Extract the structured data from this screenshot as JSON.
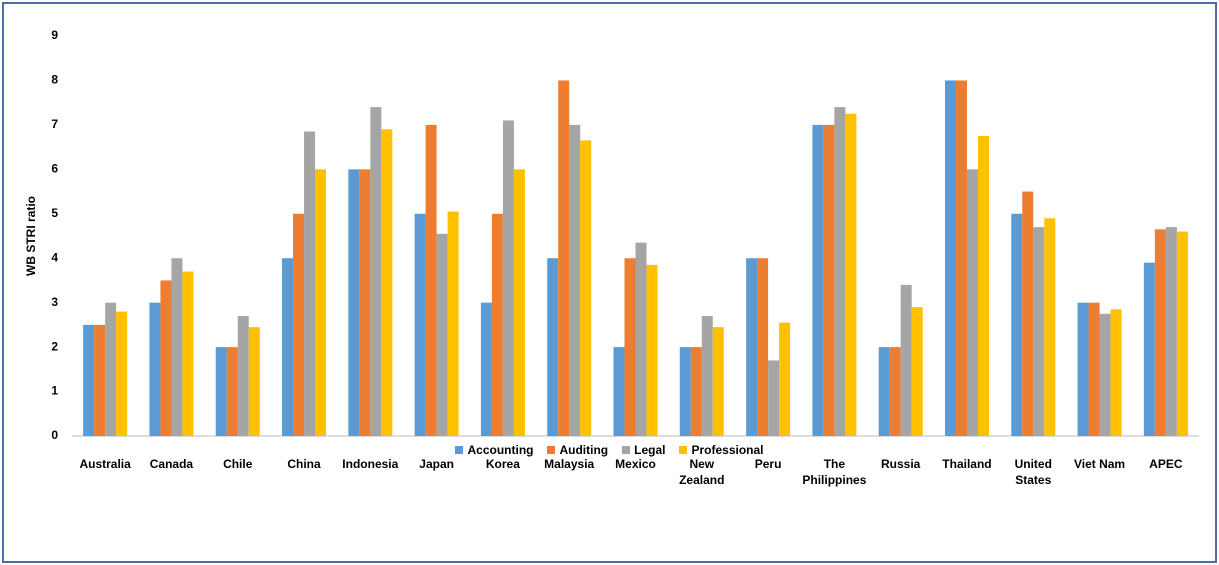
{
  "chart_data": {
    "type": "bar",
    "y_label": "WB STRI ratio",
    "categories": [
      "Australia",
      "Canada",
      "Chile",
      "China",
      "Indonesia",
      "Japan",
      "Korea",
      "Malaysia",
      "Mexico",
      "New Zealand",
      "Peru",
      "The Philippines",
      "Russia",
      "Thailand",
      "United States",
      "Viet Nam",
      "APEC"
    ],
    "series": [
      {
        "name": "Accounting",
        "color": "#5b9bd5",
        "values": [
          2.5,
          3,
          2,
          4,
          6,
          5,
          3,
          4,
          2,
          2,
          4,
          7,
          2,
          8,
          5,
          3,
          3.9
        ]
      },
      {
        "name": "Auditing",
        "color": "#ed7d31",
        "values": [
          2.5,
          3.5,
          2,
          5,
          6,
          7,
          5,
          8,
          4,
          2,
          4,
          7,
          2,
          8,
          5.5,
          3,
          4.65
        ]
      },
      {
        "name": "Legal",
        "color": "#a5a5a5",
        "values": [
          3,
          4,
          2.7,
          6.85,
          7.4,
          4.55,
          7.1,
          7,
          4.35,
          2.7,
          1.7,
          7.4,
          3.4,
          6,
          4.7,
          2.75,
          4.7
        ]
      },
      {
        "name": "Professional",
        "color": "#ffc000",
        "values": [
          2.8,
          3.7,
          2.45,
          6,
          6.9,
          5.05,
          6,
          6.65,
          3.85,
          2.45,
          2.55,
          7.25,
          2.9,
          6.75,
          4.9,
          2.85,
          4.6
        ]
      }
    ],
    "ylim": [
      0,
      9
    ],
    "yticks": [
      0,
      1,
      2,
      3,
      4,
      5,
      6,
      7,
      8,
      9
    ],
    "grid": false,
    "legend": "bottom"
  }
}
